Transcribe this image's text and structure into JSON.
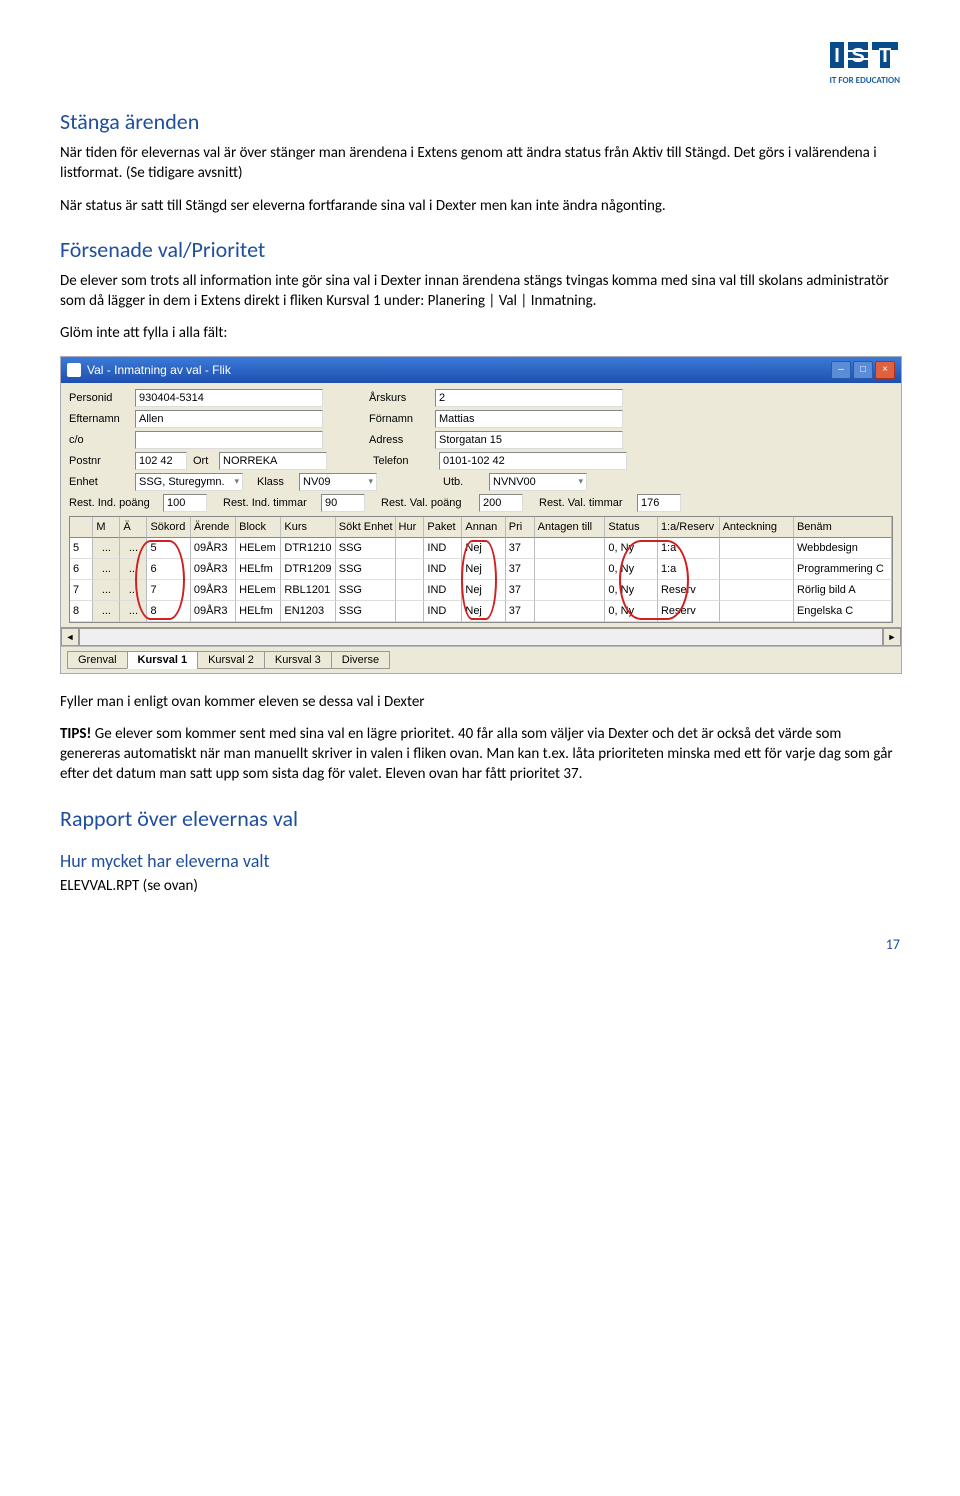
{
  "logo": {
    "sub": "IT FOR EDUCATION"
  },
  "h1a": "Stänga ärenden",
  "p1": "När tiden för elevernas val är över stänger man ärendena i Extens genom att ändra status från Aktiv till Stängd. Det görs i valärendena i listformat. (Se tidigare avsnitt)",
  "p2": "När status är satt till Stängd ser eleverna fortfarande sina val i Dexter men kan inte ändra någonting.",
  "h1b": "Försenade val/Prioritet",
  "p3": "De elever som trots all information inte gör sina val i Dexter innan ärendena stängs tvingas komma med sina val till skolans administratör som då lägger in dem i Extens direkt i fliken Kursval 1 under: Planering | Val | Inmatning.",
  "p4": "Glöm inte att fylla i alla fält:",
  "screenshot": {
    "title": "Val - Inmatning av val - Flik",
    "form": {
      "r1": {
        "l1": "Personid",
        "v1": "930404-5314",
        "l2": "Årskurs",
        "v2": "2"
      },
      "r2": {
        "l1": "Efternamn",
        "v1": "Allen",
        "l2": "Förnamn",
        "v2": "Mattias"
      },
      "r3": {
        "l1": "c/o",
        "v1": "",
        "l2": "Adress",
        "v2": "Storgatan 15"
      },
      "r4": {
        "l1": "Postnr",
        "v1": "102 42",
        "l1b": "Ort",
        "v1b": "NORREKA",
        "l2": "Telefon",
        "v2": "0101-102 42"
      },
      "r5": {
        "l1": "Enhet",
        "v1": "SSG, Sturegymn.",
        "l2": "Klass",
        "v2": "NV09",
        "l3": "Utb.",
        "v3": "NVNV00"
      },
      "r6": {
        "l1": "Rest. Ind. poäng",
        "v1": "100",
        "l2": "Rest. Ind. timmar",
        "v2": "90",
        "l3": "Rest. Val. poäng",
        "v3": "200",
        "l4": "Rest. Val. timmar",
        "v4": "176"
      }
    },
    "grid": {
      "headers": [
        "",
        "M",
        "Ä",
        "Sökord",
        "Ärende",
        "Block",
        "Kurs",
        "Sökt Enhet",
        "Hur",
        "Paket",
        "Annan",
        "Pri",
        "Antagen till",
        "Status",
        "1:a/Reserv",
        "Anteckning",
        "Benäm"
      ],
      "widths": [
        18,
        22,
        22,
        40,
        42,
        42,
        52,
        58,
        24,
        34,
        40,
        24,
        70,
        50,
        60,
        74,
        100
      ],
      "rows": [
        [
          "5",
          "...",
          "...",
          "5",
          "09ÅR3",
          "HELem",
          "DTR1210",
          "SSG",
          "",
          "IND",
          "Nej",
          "37",
          "",
          "0, Ny",
          "1:a",
          "",
          "Webbdesign"
        ],
        [
          "6",
          "...",
          "...",
          "6",
          "09ÅR3",
          "HELfm",
          "DTR1209",
          "SSG",
          "",
          "IND",
          "Nej",
          "37",
          "",
          "0, Ny",
          "1:a",
          "",
          "Programmering C"
        ],
        [
          "7",
          "...",
          "...",
          "7",
          "09ÅR3",
          "HELem",
          "RBL1201",
          "SSG",
          "",
          "IND",
          "Nej",
          "37",
          "",
          "0, Ny",
          "Reserv",
          "",
          "Rörlig bild A"
        ],
        [
          "8",
          "...",
          "...",
          "8",
          "09ÅR3",
          "HELfm",
          "EN1203",
          "SSG",
          "",
          "IND",
          "Nej",
          "37",
          "",
          "0, Ny",
          "Reserv",
          "",
          "Engelska C"
        ]
      ]
    },
    "tabs": [
      "Grenval",
      "Kursval 1",
      "Kursval 2",
      "Kursval 3",
      "Diverse"
    ],
    "active_tab": 1
  },
  "p5": "Fyller man i enligt ovan kommer eleven se dessa val i Dexter",
  "tips_label": "TIPS!",
  "p6": " Ge elever som kommer sent med sina val en lägre prioritet. 40 får alla som väljer via Dexter och det är också det värde som genereras automatiskt när man manuellt skriver in valen i fliken ovan. Man kan t.ex. låta prioriteten minska med ett för varje dag som går efter det datum man satt upp som sista dag för valet. Eleven ovan har fått prioritet 37.",
  "h1c": "Rapport över elevernas val",
  "h2a": "Hur mycket har eleverna valt",
  "p7": "ELEVVAL.RPT (se ovan)",
  "page": "17"
}
